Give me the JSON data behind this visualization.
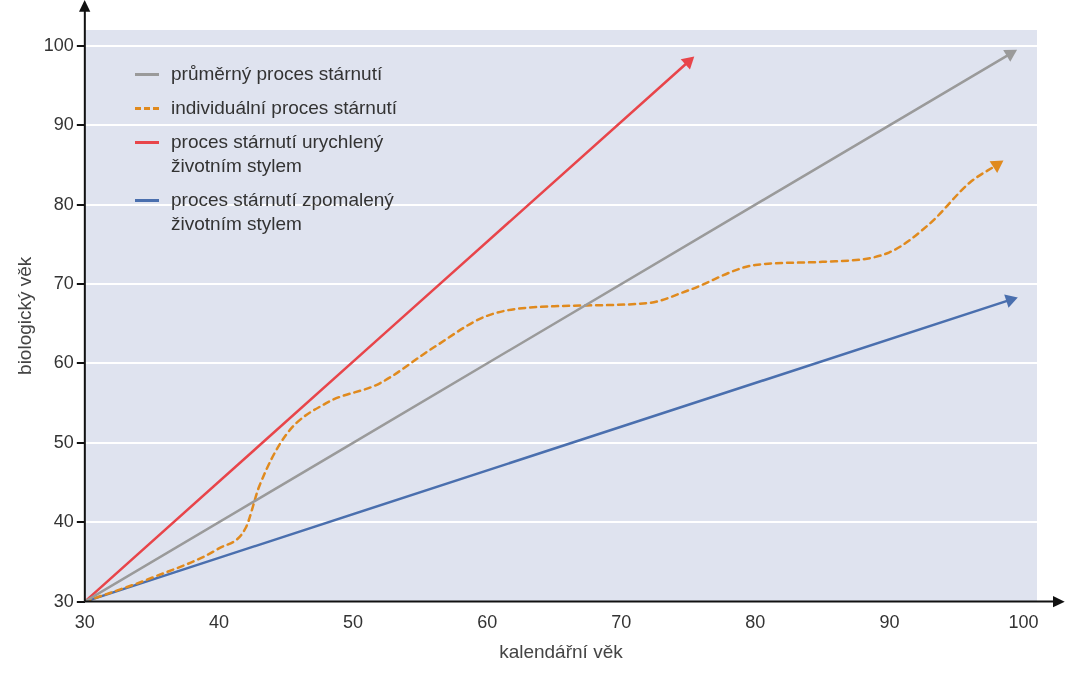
{
  "chart_data": {
    "type": "line",
    "xlabel": "kalendářní věk",
    "ylabel": "biologický věk",
    "xlim": [
      30,
      101
    ],
    "ylim": [
      30,
      102
    ],
    "xticks": [
      30,
      40,
      50,
      60,
      70,
      80,
      90,
      100
    ],
    "yticks": [
      30,
      40,
      50,
      60,
      70,
      80,
      90,
      100
    ],
    "grid": "y",
    "legend": "top left",
    "series": [
      {
        "name": "průměrný proces stárnutí",
        "color": "#9a9a9a",
        "line_style": "solid",
        "x": [
          30,
          99
        ],
        "values": [
          30,
          99
        ]
      },
      {
        "name": "individuální proces stárnutí",
        "color": "#e08a1e",
        "line_style": "dashed",
        "x": [
          30,
          35,
          40,
          42,
          43,
          45,
          48,
          52,
          56,
          60,
          65,
          72,
          75,
          80,
          85,
          90,
          93,
          96,
          98
        ],
        "values": [
          30,
          33,
          36.7,
          39.3,
          44.5,
          51,
          55,
          57.5,
          62,
          66,
          67.2,
          67.6,
          69.2,
          72.4,
          72.8,
          74,
          77.6,
          82.8,
          85
        ]
      },
      {
        "name": "proces stárnutí urychlený životním stylem",
        "color": "#e8454a",
        "line_style": "solid",
        "x": [
          30,
          75
        ],
        "values": [
          30,
          98
        ]
      },
      {
        "name": "proces stárnutí zpomalený životním stylem",
        "color": "#4a6fae",
        "line_style": "solid",
        "x": [
          30,
          99
        ],
        "values": [
          30,
          68
        ]
      }
    ]
  }
}
